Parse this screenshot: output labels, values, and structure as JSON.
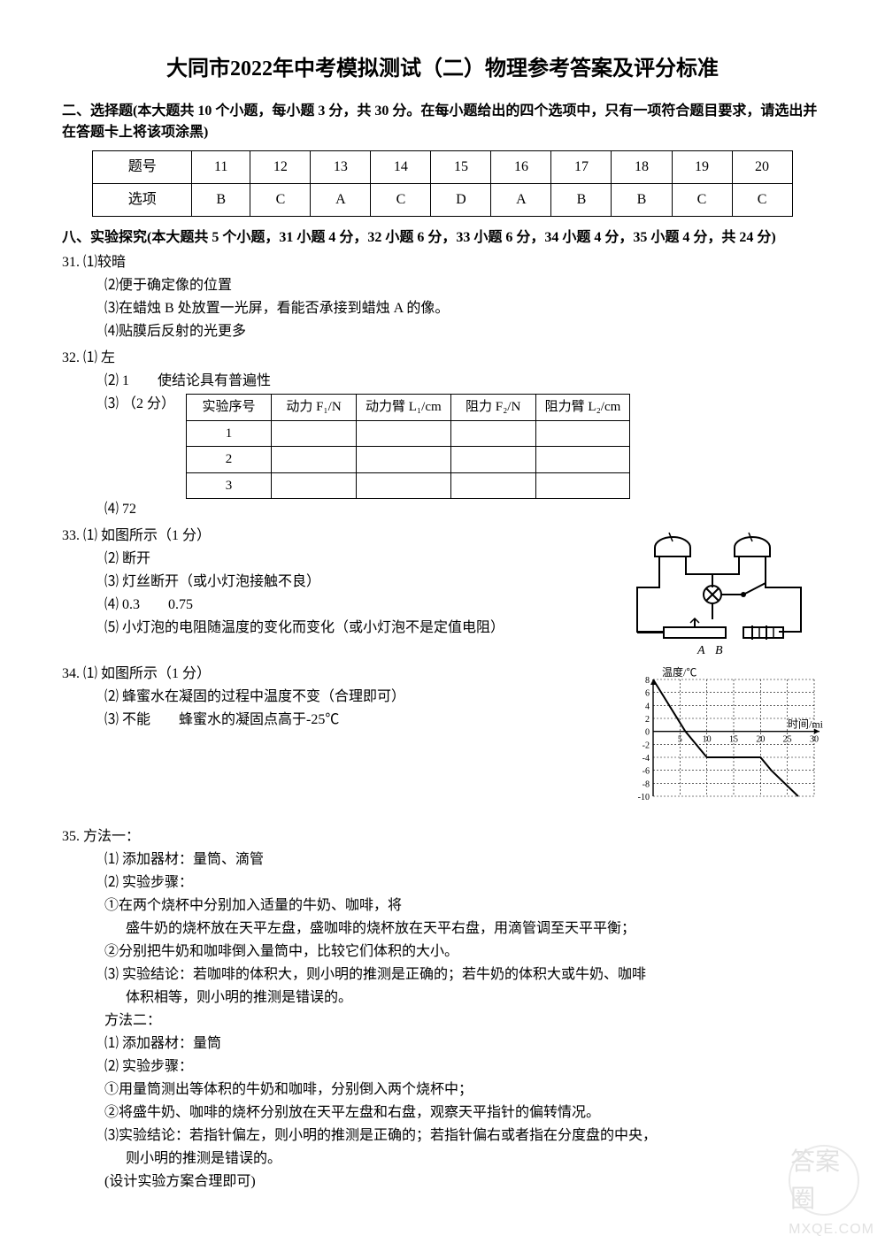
{
  "title": "大同市2022年中考模拟测试（二）物理参考答案及评分标准",
  "section2": {
    "header": "二、选择题(本大题共 10 个小题，每小题 3 分，共 30 分。在每小题给出的四个选项中，只有一项符合题目要求，请选出并在答题卡上将该项涂黑)",
    "table": {
      "row_label1": "题号",
      "row_label2": "选项",
      "nums": [
        "11",
        "12",
        "13",
        "14",
        "15",
        "16",
        "17",
        "18",
        "19",
        "20"
      ],
      "ans": [
        "B",
        "C",
        "A",
        "C",
        "D",
        "A",
        "B",
        "B",
        "C",
        "C"
      ],
      "border_color": "#000000",
      "cell_padding": 6
    }
  },
  "section8": {
    "header": "八、实验探究(本大题共 5 个小题，31 小题 4 分，32 小题 6 分，33 小题 6 分，34 小题 4 分，35 小题 4 分，共 24 分)"
  },
  "q31": {
    "num": "31.",
    "i1": "⑴较暗",
    "i2": "⑵便于确定像的位置",
    "i3": "⑶在蜡烛 B 处放置一光屏，看能否承接到蜡烛 A 的像。",
    "i4": "⑷贴膜后反射的光更多"
  },
  "q32": {
    "num": "32.",
    "i1": "⑴ 左",
    "i2": "⑵ 1　　使结论具有普遍性",
    "i3": "⑶ （2 分）",
    "i4": "⑷ 72",
    "table": {
      "headers": [
        "实验序号",
        "动力 F₁/N",
        "动力臂 L₁/cm",
        "阻力 F₂/N",
        "阻力臂 L₂/cm"
      ],
      "rows": [
        [
          "1",
          "",
          "",
          "",
          ""
        ],
        [
          "2",
          "",
          "",
          "",
          ""
        ],
        [
          "3",
          "",
          "",
          "",
          ""
        ]
      ],
      "border_color": "#000000"
    }
  },
  "q33": {
    "num": "33.",
    "i1": "⑴ 如图所示（1 分）",
    "i2": "⑵ 断开",
    "i3": "⑶ 灯丝断开（或小灯泡接触不良）",
    "i4": "⑷ 0.3　　0.75",
    "i5": "⑸ 小灯泡的电阻随温度的变化而变化（或小灯泡不是定值电阻）",
    "fig_label": "A　B"
  },
  "q34": {
    "num": "34.",
    "i1": "⑴ 如图所示（1 分）",
    "i2": "⑵ 蜂蜜水在凝固的过程中温度不变（合理即可）",
    "i3": "⑶ 不能　　蜂蜜水的凝固点高于-25℃",
    "chart": {
      "type": "line",
      "ylabel": "温度/℃",
      "xlabel": "时间/min",
      "xlim": [
        0,
        30
      ],
      "ylim": [
        -10,
        8
      ],
      "xticks": [
        5,
        10,
        15,
        20,
        25,
        30
      ],
      "yticks": [
        -10,
        -8,
        -6,
        -4,
        -2,
        0,
        2,
        4,
        6,
        8
      ],
      "grid_style": "dashed",
      "grid_color": "#000000",
      "line_color": "#000000",
      "line_width": 2,
      "background_color": "#ffffff",
      "axis_color": "#000000",
      "label_fontsize": 12,
      "points": [
        [
          0,
          8
        ],
        [
          6,
          0
        ],
        [
          10,
          -4
        ],
        [
          15,
          -4
        ],
        [
          20,
          -4
        ],
        [
          22,
          -6
        ],
        [
          27,
          -10
        ]
      ]
    }
  },
  "q35": {
    "num": "35.",
    "m1_title": "方法一：",
    "m1_1": "⑴ 添加器材：量筒、滴管",
    "m1_2": "⑵ 实验步骤：",
    "m1_s1": "①在两个烧杯中分别加入适量的牛奶、咖啡，将",
    "m1_s1b": "盛牛奶的烧杯放在天平左盘，盛咖啡的烧杯放在天平右盘，用滴管调至天平平衡；",
    "m1_s2": "②分别把牛奶和咖啡倒入量筒中，比较它们体积的大小。",
    "m1_3": "⑶ 实验结论：若咖啡的体积大，则小明的推测是正确的；若牛奶的体积大或牛奶、咖啡",
    "m1_3b": "体积相等，则小明的推测是错误的。",
    "m2_title": "方法二：",
    "m2_1": "⑴ 添加器材：量筒",
    "m2_2": "⑵ 实验步骤：",
    "m2_s1": "①用量筒测出等体积的牛奶和咖啡，分别倒入两个烧杯中；",
    "m2_s2": "②将盛牛奶、咖啡的烧杯分别放在天平左盘和右盘，观察天平指针的偏转情况。",
    "m2_3": "⑶实验结论：若指针偏左，则小明的推测是正确的；若指针偏右或者指在分度盘的中央，",
    "m2_3b": "则小明的推测是错误的。",
    "note": "(设计实验方案合理即可)"
  },
  "watermark": {
    "line1": "答案圈",
    "line2": "MXQE.COM"
  }
}
